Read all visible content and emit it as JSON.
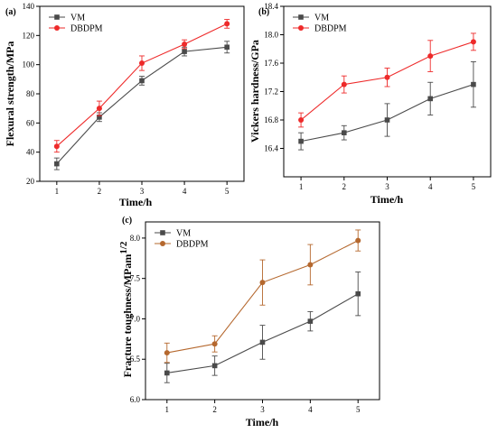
{
  "colors": {
    "vm": "#4a4a4a",
    "dbdpm_red": "#ee2a2a",
    "dbdpm_brown": "#b5682e",
    "axis": "#000000"
  },
  "chart_data": [
    {
      "type": "line",
      "panel_label": "(a)",
      "xlabel": "Time/h",
      "ylabel": "Flexural strength/MPa",
      "x": [
        1,
        2,
        3,
        4,
        5
      ],
      "xlim": [
        0.6,
        5.4
      ],
      "ylim": [
        20,
        140
      ],
      "xticks": [
        1,
        2,
        3,
        4,
        5
      ],
      "yticks": [
        20,
        40,
        60,
        80,
        100,
        120,
        140
      ],
      "ytick_labels": [
        "20",
        "40",
        "60",
        "80",
        "100",
        "120",
        "140"
      ],
      "grid": false,
      "legend": "top-left",
      "series": [
        {
          "name": "VM",
          "color": "#4a4a4a",
          "marker": "square",
          "values": [
            32,
            64,
            89,
            109,
            112
          ],
          "errors": [
            4,
            3,
            3,
            3,
            4
          ]
        },
        {
          "name": "DBDPM",
          "color": "#ee2a2a",
          "marker": "circle",
          "values": [
            44,
            70,
            101,
            114,
            128
          ],
          "errors": [
            4,
            5,
            5,
            3,
            3
          ]
        }
      ]
    },
    {
      "type": "line",
      "panel_label": "(b)",
      "xlabel": "Time/h",
      "ylabel": "Vickers hardness/GPa",
      "x": [
        1,
        2,
        3,
        4,
        5
      ],
      "xlim": [
        0.6,
        5.4
      ],
      "ylim": [
        16.0,
        18.4
      ],
      "xticks": [
        1,
        2,
        3,
        4,
        5
      ],
      "yticks": [
        16.4,
        16.8,
        17.2,
        17.6,
        18.0,
        18.4
      ],
      "ytick_labels": [
        "16.4",
        "16.8",
        "17.2",
        "17.6",
        "18.0",
        "18.4"
      ],
      "grid": false,
      "legend": "top-left",
      "series": [
        {
          "name": "VM",
          "color": "#4a4a4a",
          "marker": "square",
          "values": [
            16.5,
            16.62,
            16.8,
            17.1,
            17.3
          ],
          "errors": [
            0.12,
            0.1,
            0.23,
            0.23,
            0.32
          ]
        },
        {
          "name": "DBDPM",
          "color": "#ee2a2a",
          "marker": "circle",
          "values": [
            16.8,
            17.3,
            17.4,
            17.7,
            17.9
          ],
          "errors": [
            0.1,
            0.12,
            0.13,
            0.22,
            0.12
          ]
        }
      ]
    },
    {
      "type": "line",
      "panel_label": "(c)",
      "xlabel": "Time/h",
      "ylabel": "Fracture toughness/MPam",
      "ylabel_superscript": "1/2",
      "x": [
        1,
        2,
        3,
        4,
        5
      ],
      "xlim": [
        0.55,
        5.45
      ],
      "ylim": [
        6.0,
        8.2
      ],
      "xticks": [
        1,
        2,
        3,
        4,
        5
      ],
      "yticks": [
        6.0,
        6.5,
        7.0,
        7.5,
        8.0
      ],
      "ytick_labels": [
        "6.0",
        "6.5",
        "7.0",
        "7.5",
        "8.0"
      ],
      "grid": false,
      "legend": "top-left",
      "series": [
        {
          "name": "VM",
          "color": "#4a4a4a",
          "marker": "square",
          "values": [
            6.33,
            6.42,
            6.71,
            6.97,
            7.31
          ],
          "errors": [
            0.12,
            0.12,
            0.21,
            0.12,
            0.27
          ]
        },
        {
          "name": "DBDPM",
          "color": "#b5682e",
          "marker": "circle",
          "values": [
            6.58,
            6.69,
            7.45,
            7.67,
            7.97
          ],
          "errors": [
            0.12,
            0.1,
            0.28,
            0.25,
            0.13
          ]
        }
      ]
    }
  ]
}
